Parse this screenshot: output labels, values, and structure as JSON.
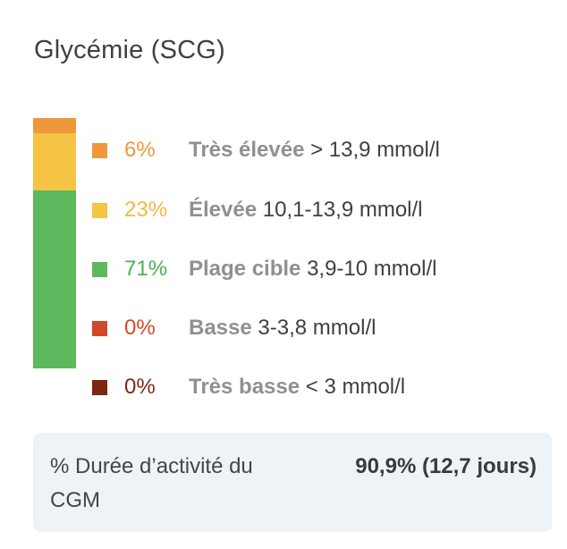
{
  "card": {
    "title": "Glycémie (SCG)"
  },
  "ranges": [
    {
      "label": "Très élevée",
      "range": "> 13,9 mmol/l",
      "percent_text": "6%",
      "percent": 6,
      "color": "#F0973C",
      "text_color": "#F0973C"
    },
    {
      "label": "Élevée",
      "range": "10,1-13,9 mmol/l",
      "percent_text": "23%",
      "percent": 23,
      "color": "#F5C445",
      "text_color": "#F2B93B"
    },
    {
      "label": "Plage cible",
      "range": "3,9-10 mmol/l",
      "percent_text": "71%",
      "percent": 71,
      "color": "#5CB95E",
      "text_color": "#4DAF52"
    },
    {
      "label": "Basse",
      "range": "3-3,8 mmol/l",
      "percent_text": "0%",
      "percent": 0,
      "color": "#D04A28",
      "text_color": "#D04A28"
    },
    {
      "label": "Très basse",
      "range": "< 3 mmol/l",
      "percent_text": "0%",
      "percent": 0,
      "color": "#7A2812",
      "text_color": "#7A2812"
    }
  ],
  "footer": {
    "label": "% Durée d’activité du CGM",
    "value": "90,9% (12,7 jours)"
  }
}
